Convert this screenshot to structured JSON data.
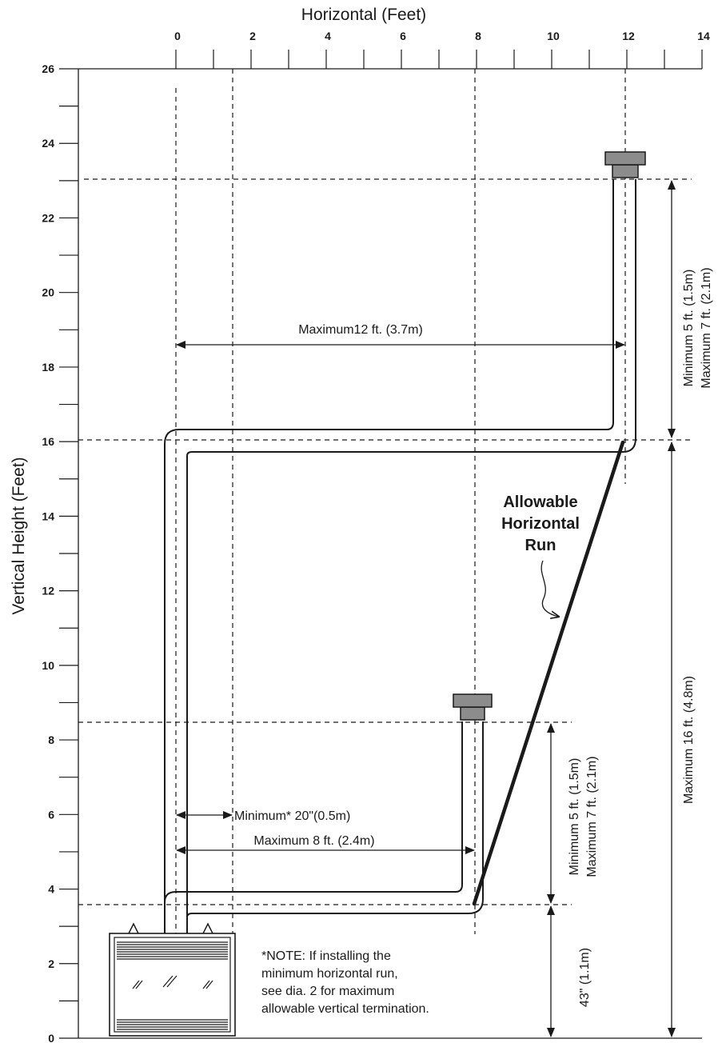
{
  "axes": {
    "x_title": "Horizontal (Feet)",
    "y_title": "Vertical Height (Feet)",
    "x_ticks": [
      "0",
      "2",
      "4",
      "6",
      "8",
      "10",
      "12",
      "14"
    ],
    "y_ticks": [
      "0",
      "2",
      "4",
      "6",
      "8",
      "10",
      "12",
      "14",
      "16",
      "18",
      "20",
      "22",
      "24",
      "26"
    ]
  },
  "dimensions": {
    "max_12ft": "Maximum12 ft. (3.7m)",
    "upper_min": "Minimum 5 ft. (1.5m)",
    "upper_max": "Maximum 7 ft. (2.1m)",
    "lower_min": "Minimum 5 ft. (1.5m)",
    "lower_max": "Maximum 7 ft. (2.1m)",
    "min_20in": "Minimum* 20\"(0.5m)",
    "max_8ft": "Maximum 8 ft. (2.4m)",
    "max_16ft": "Maximum 16 ft. (4.8m)",
    "h_43in": "43\" (1.1m)"
  },
  "callout": {
    "line1": "Allowable",
    "line2": "Horizontal",
    "line3": "Run"
  },
  "note": {
    "line1": "*NOTE: If installing the",
    "line2": "minimum horizontal run,",
    "line3": "see dia. 2 for maximum",
    "line4": "allowable vertical termination."
  },
  "colors": {
    "ink": "#1a1a1a",
    "cap": "#8c8c8c"
  }
}
